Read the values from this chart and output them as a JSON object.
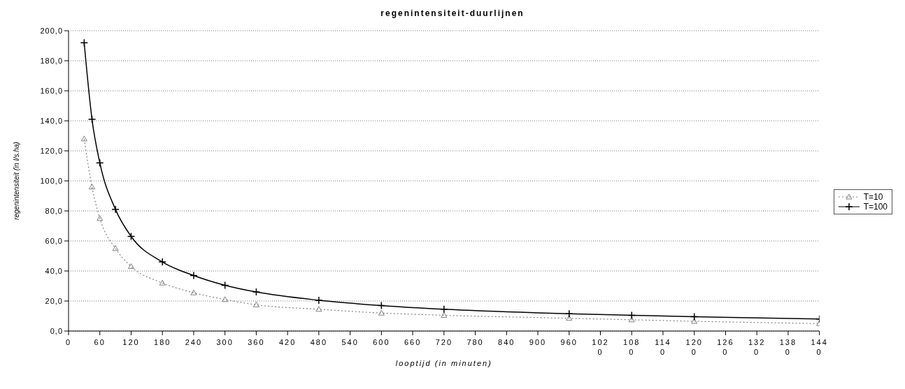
{
  "chart_data": {
    "type": "line",
    "title": "regenintensiteit-duurlijnen",
    "xlabel": "looptijd (in minuten)",
    "ylabel": "regenintensiteit (in l/s.ha)",
    "xlim": [
      0,
      1440
    ],
    "xticks": [
      0,
      60,
      120,
      180,
      240,
      300,
      360,
      420,
      480,
      540,
      600,
      660,
      720,
      780,
      840,
      900,
      960,
      1020,
      1080,
      1140,
      1200,
      1260,
      1320,
      1380,
      1440
    ],
    "ylim": [
      0,
      200
    ],
    "yticks": [
      {
        "value": 0,
        "label": "0,0"
      },
      {
        "value": 20,
        "label": "20,0"
      },
      {
        "value": 40,
        "label": "40,0"
      },
      {
        "value": 60,
        "label": "60,0"
      },
      {
        "value": 80,
        "label": "80,0"
      },
      {
        "value": 100,
        "label": "100,0"
      },
      {
        "value": 120,
        "label": "120,0"
      },
      {
        "value": 140,
        "label": "140,0"
      },
      {
        "value": 160,
        "label": "160,0"
      },
      {
        "value": 180,
        "label": "180,0"
      },
      {
        "value": 200,
        "label": "200,0"
      }
    ],
    "grid": "y",
    "legend": "right",
    "series": [
      {
        "name": "T=10",
        "color": "#808080",
        "marker": "triangle",
        "line_style": "dotted",
        "x": [
          30,
          45,
          60,
          90,
          120,
          180,
          240,
          300,
          360,
          480,
          600,
          720,
          960,
          1080,
          1200,
          1440
        ],
        "values": [
          128,
          96,
          75,
          55,
          43,
          32,
          25.5,
          21,
          17.5,
          14.5,
          12,
          10.5,
          8.5,
          7.5,
          6.5,
          5
        ]
      },
      {
        "name": "T=100",
        "color": "#000000",
        "marker": "cross",
        "line_style": "solid",
        "x": [
          30,
          45,
          60,
          90,
          120,
          180,
          240,
          300,
          360,
          480,
          600,
          720,
          960,
          1080,
          1200,
          1440
        ],
        "values": [
          192,
          141,
          112,
          81,
          63,
          46,
          37,
          30.5,
          26,
          20.5,
          17,
          14.5,
          11.5,
          10.5,
          9.5,
          8
        ]
      }
    ]
  }
}
